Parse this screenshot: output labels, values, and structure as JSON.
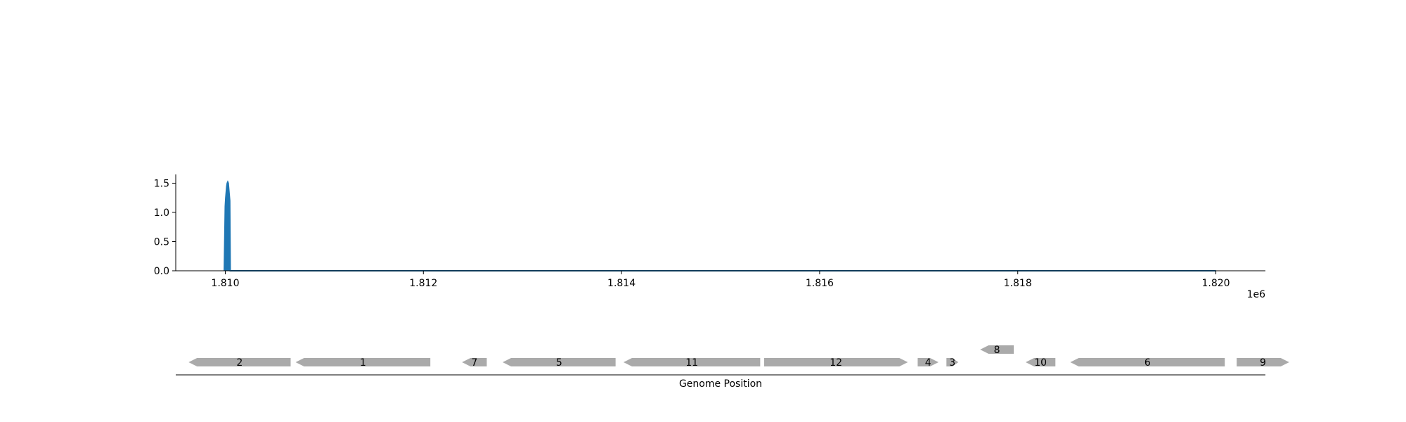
{
  "chart_data": [
    {
      "type": "area",
      "title": "",
      "xlabel": "",
      "ylabel": "",
      "xlim": [
        1809500,
        1820500
      ],
      "ylim": [
        0,
        1.65
      ],
      "x_offset_label": "1e6",
      "x_ticks": [
        1810000,
        1812000,
        1814000,
        1816000,
        1818000,
        1820000
      ],
      "x_tick_labels": [
        "1.810",
        "1.812",
        "1.814",
        "1.816",
        "1.818",
        "1.820"
      ],
      "y_ticks": [
        0.0,
        0.5,
        1.0,
        1.5
      ],
      "y_tick_labels": [
        "0.0",
        "0.5",
        "1.0",
        "1.5"
      ],
      "grid": false,
      "series": [
        {
          "color": "#1f77b4",
          "x": [
            1809990,
            1810000,
            1810005,
            1810010,
            1810015,
            1810020,
            1810025,
            1810030,
            1810035,
            1810040,
            1810045,
            1810050,
            1810060,
            1812000,
            1814000,
            1816000,
            1818000,
            1820000
          ],
          "values": [
            0,
            1.1,
            1.25,
            1.35,
            1.45,
            1.5,
            1.52,
            1.5,
            1.4,
            1.3,
            1.2,
            0,
            0,
            0,
            0,
            0,
            0,
            0
          ]
        }
      ]
    },
    {
      "type": "gene-track",
      "xlabel": "Genome Position",
      "xlim": [
        1809500,
        1820500
      ],
      "feature_color": "#aaaaaa",
      "features": [
        {
          "label": "2",
          "start": 1809630,
          "end": 1810660,
          "strand": "-",
          "row": 0
        },
        {
          "label": "1",
          "start": 1810710,
          "end": 1812070,
          "strand": "-",
          "row": 0
        },
        {
          "label": "7",
          "start": 1812390,
          "end": 1812640,
          "strand": "-",
          "row": 0
        },
        {
          "label": "5",
          "start": 1812800,
          "end": 1813940,
          "strand": "-",
          "row": 0
        },
        {
          "label": "11",
          "start": 1814020,
          "end": 1815400,
          "strand": "-",
          "row": 0
        },
        {
          "label": "12",
          "start": 1815440,
          "end": 1816890,
          "strand": "+",
          "row": 0
        },
        {
          "label": "4",
          "start": 1816990,
          "end": 1817200,
          "strand": "+",
          "row": 0
        },
        {
          "label": "3",
          "start": 1817280,
          "end": 1817400,
          "strand": "+",
          "row": 0
        },
        {
          "label": "8",
          "start": 1817620,
          "end": 1817960,
          "strand": "-",
          "row": 1
        },
        {
          "label": "10",
          "start": 1818080,
          "end": 1818380,
          "strand": "-",
          "row": 0
        },
        {
          "label": "6",
          "start": 1818530,
          "end": 1820090,
          "strand": "-",
          "row": 0
        },
        {
          "label": "9",
          "start": 1820210,
          "end": 1820740,
          "strand": "+",
          "row": 0
        }
      ]
    }
  ]
}
